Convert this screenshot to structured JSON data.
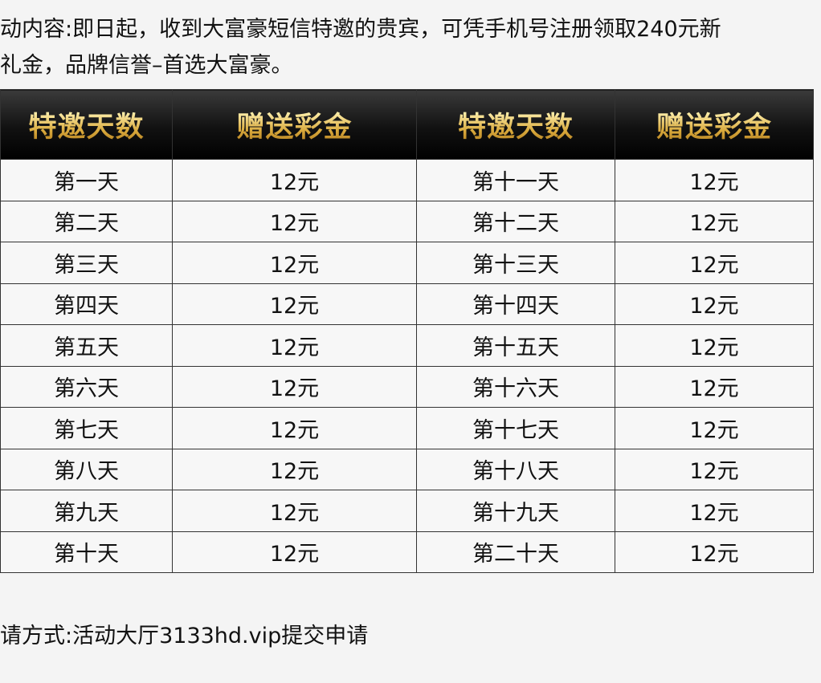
{
  "intro": {
    "line1": "动内容:即日起，收到大富豪短信特邀的贵宾，可凭手机号注册领取240元新",
    "line2": "礼金，品牌信誉–首选大富豪。"
  },
  "table": {
    "headers": [
      "特邀天数",
      "赠送彩金",
      "特邀天数",
      "赠送彩金"
    ],
    "rows": [
      [
        "第一天",
        "12元",
        "第十一天",
        "12元"
      ],
      [
        "第二天",
        "12元",
        "第十二天",
        "12元"
      ],
      [
        "第三天",
        "12元",
        "第十三天",
        "12元"
      ],
      [
        "第四天",
        "12元",
        "第十四天",
        "12元"
      ],
      [
        "第五天",
        "12元",
        "第十五天",
        "12元"
      ],
      [
        "第六天",
        "12元",
        "第十六天",
        "12元"
      ],
      [
        "第七天",
        "12元",
        "第十七天",
        "12元"
      ],
      [
        "第八天",
        "12元",
        "第十八天",
        "12元"
      ],
      [
        "第九天",
        "12元",
        "第十九天",
        "12元"
      ],
      [
        "第十天",
        "12元",
        "第二十天",
        "12元"
      ]
    ]
  },
  "footer": {
    "text": "请方式:活动大厅3133hd.vip提交申请"
  },
  "colors": {
    "header_text": "#e8c46a",
    "header_bg": "#111111",
    "background": "#f4f4f4"
  }
}
